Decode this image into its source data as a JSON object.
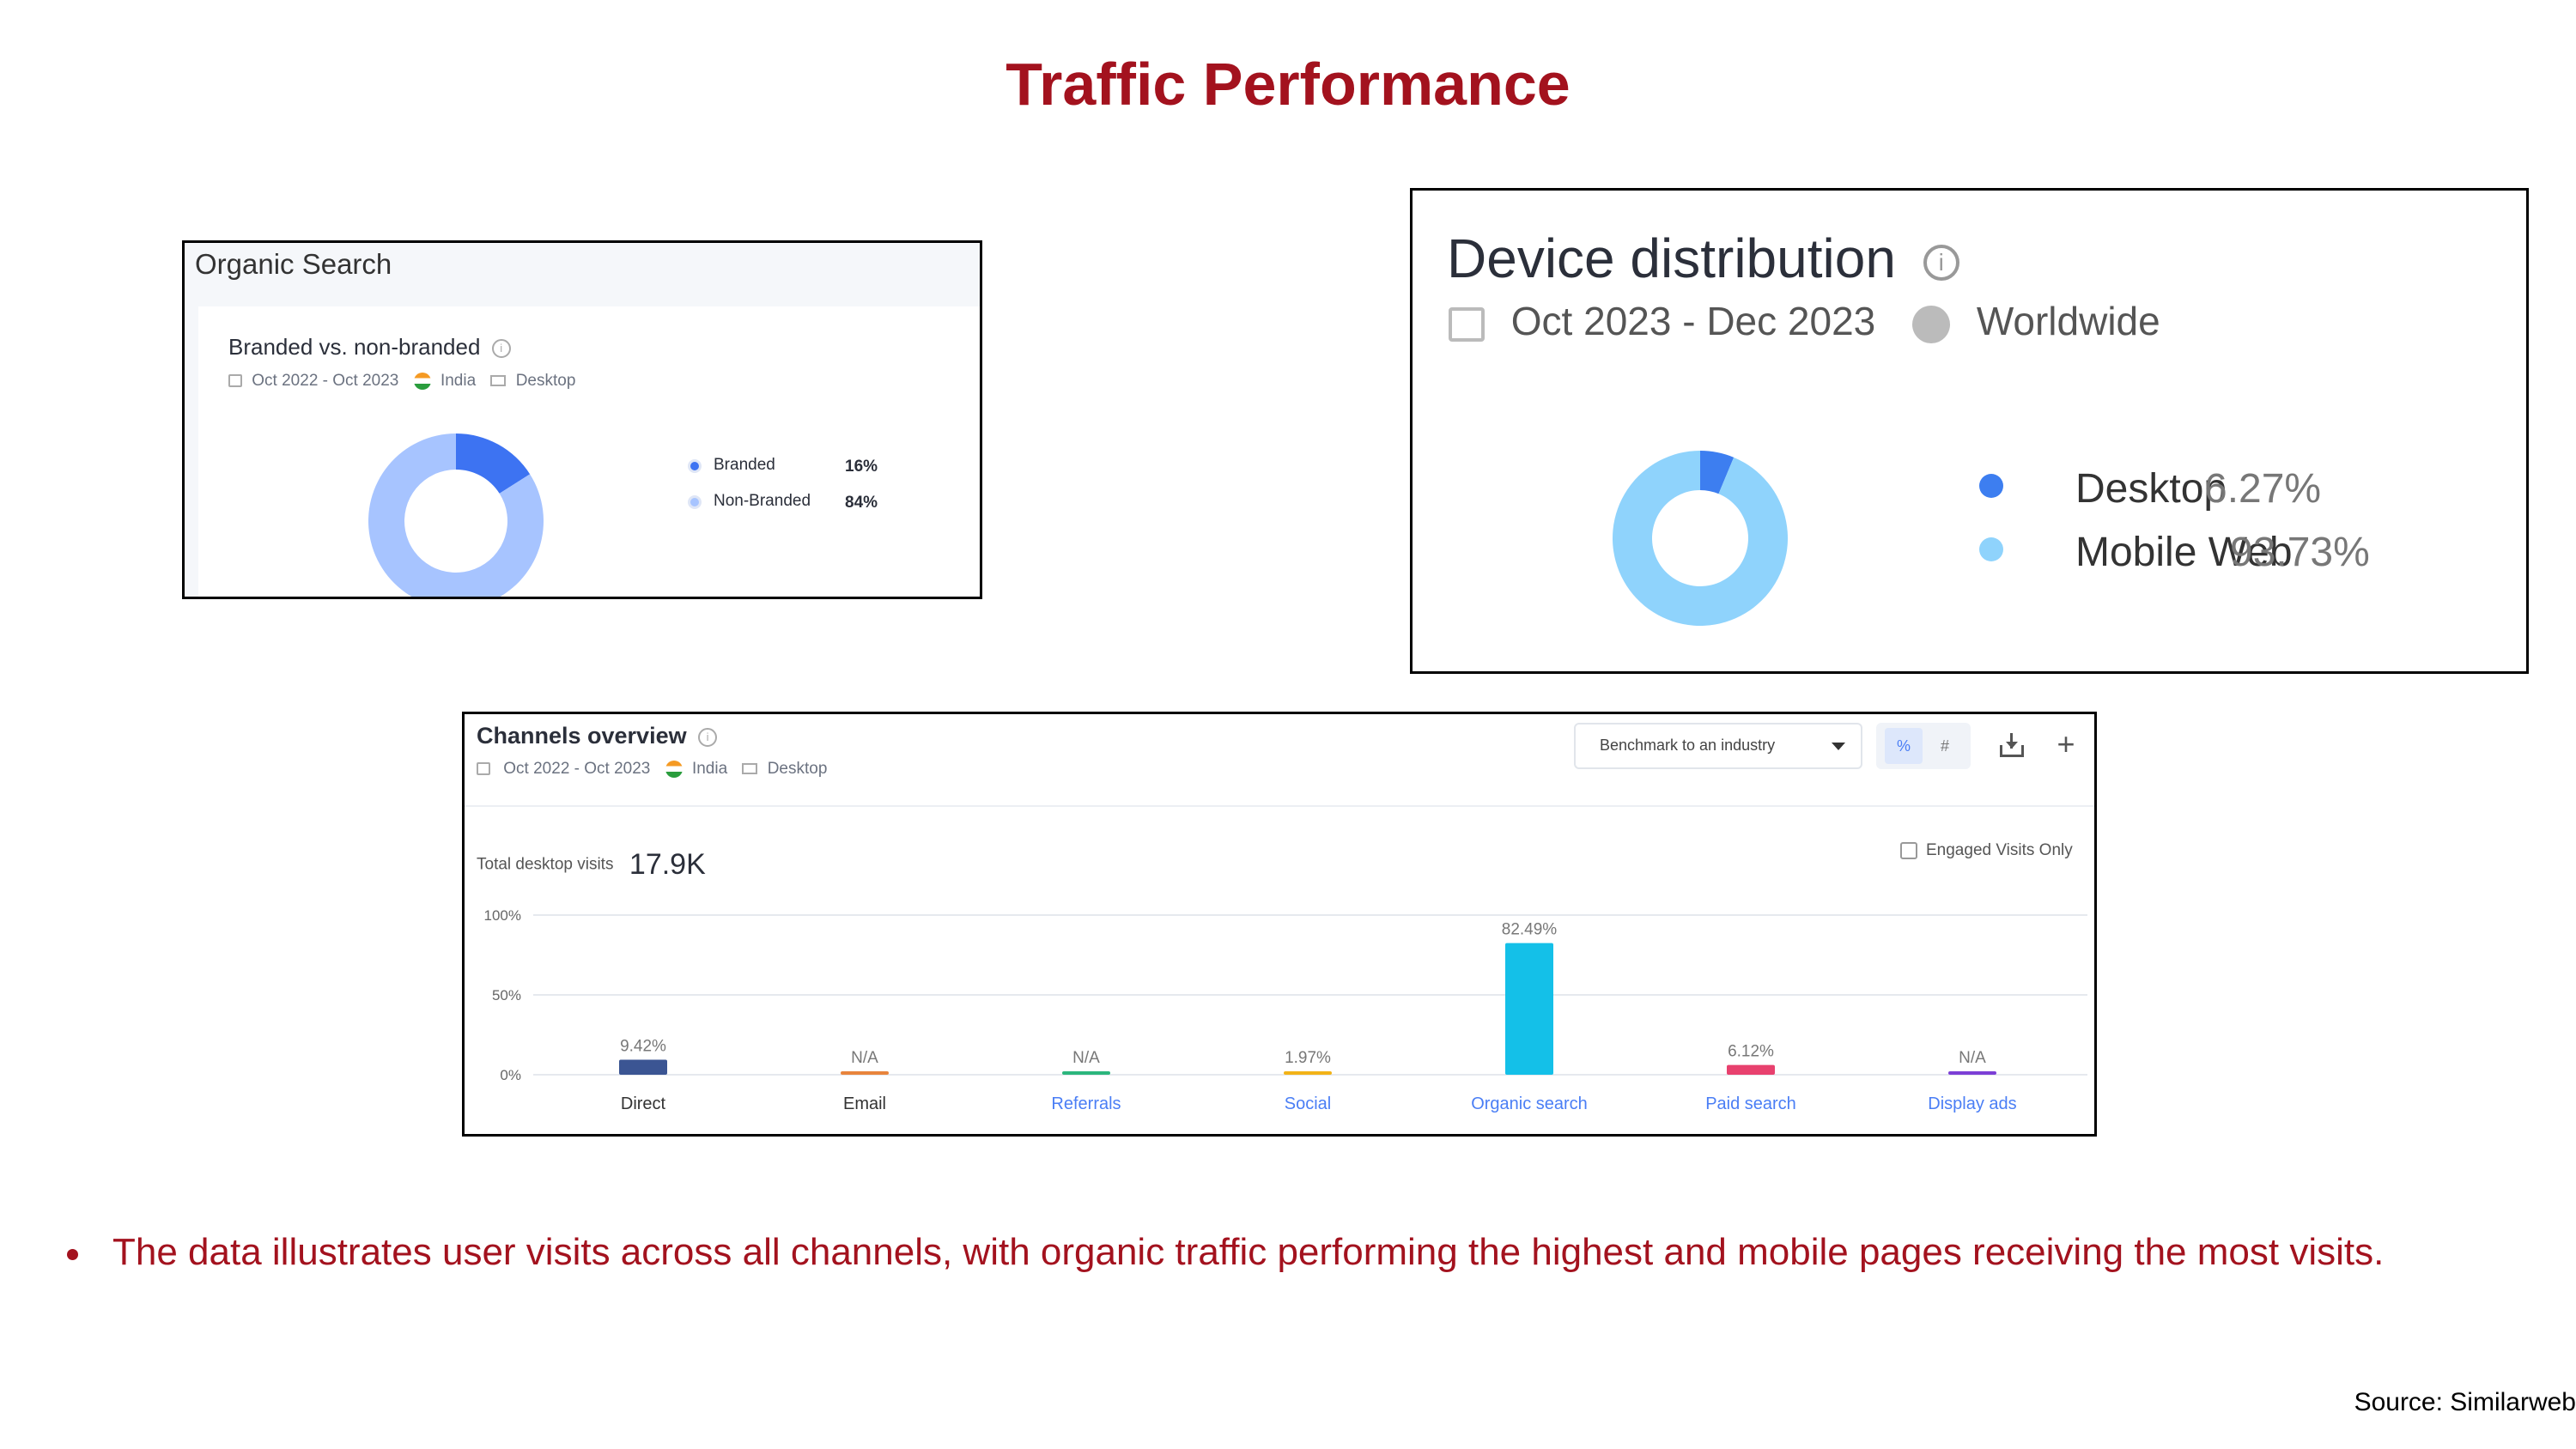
{
  "title": "Traffic Performance",
  "organic": {
    "header": "Organic Search",
    "subtitle": "Branded vs. non-branded",
    "date": "Oct 2022 - Oct 2023",
    "country": "India",
    "device": "Desktop"
  },
  "device": {
    "title": "Device distribution",
    "date": "Oct 2023 - Dec 2023",
    "region": "Worldwide"
  },
  "channels": {
    "title": "Channels overview",
    "date": "Oct 2022 - Oct 2023",
    "country": "India",
    "device": "Desktop",
    "benchmark": "Benchmark to an industry",
    "pct_toggle": "%",
    "num_toggle": "#",
    "total_label": "Total desktop visits",
    "total_value": "17.9K",
    "engaged": "Engaged Visits Only"
  },
  "bullet": "The data illustrates user visits across all channels, with organic traffic performing the highest and mobile pages receiving the most visits.",
  "source": "Source: Similarweb",
  "chart_data": [
    {
      "type": "pie",
      "title": "Branded vs. non-branded",
      "labels": [
        "Branded",
        "Non-Branded"
      ],
      "values": [
        16,
        84
      ],
      "value_labels": [
        "16%",
        "84%"
      ],
      "colors": [
        "#3d73f2",
        "#a7c4ff"
      ]
    },
    {
      "type": "pie",
      "title": "Device distribution",
      "labels": [
        "Desktop",
        "Mobile Web"
      ],
      "values": [
        6.27,
        93.73
      ],
      "value_labels": [
        "6.27%",
        "93.73%"
      ],
      "colors": [
        "#3d7ef0",
        "#8fd3fc"
      ]
    },
    {
      "type": "bar",
      "title": "Channels overview",
      "categories": [
        "Direct",
        "Email",
        "Referrals",
        "Social",
        "Organic search",
        "Paid search",
        "Display ads"
      ],
      "values": [
        9.42,
        0,
        0,
        1.97,
        82.49,
        6.12,
        0
      ],
      "value_labels": [
        "9.42%",
        "N/A",
        "N/A",
        "1.97%",
        "82.49%",
        "6.12%",
        "N/A"
      ],
      "colors": [
        "#3b5593",
        "#e8843c",
        "#2cb67d",
        "#f2b318",
        "#14c0e8",
        "#e8416e",
        "#7c3fd6"
      ],
      "category_colors": [
        "#333333",
        "#333333",
        "#4a7ef5",
        "#4a7ef5",
        "#4a7ef5",
        "#4a7ef5",
        "#4a7ef5"
      ],
      "yticks": [
        "100%",
        "50%",
        "0%"
      ],
      "ylim": [
        0,
        100
      ]
    }
  ]
}
